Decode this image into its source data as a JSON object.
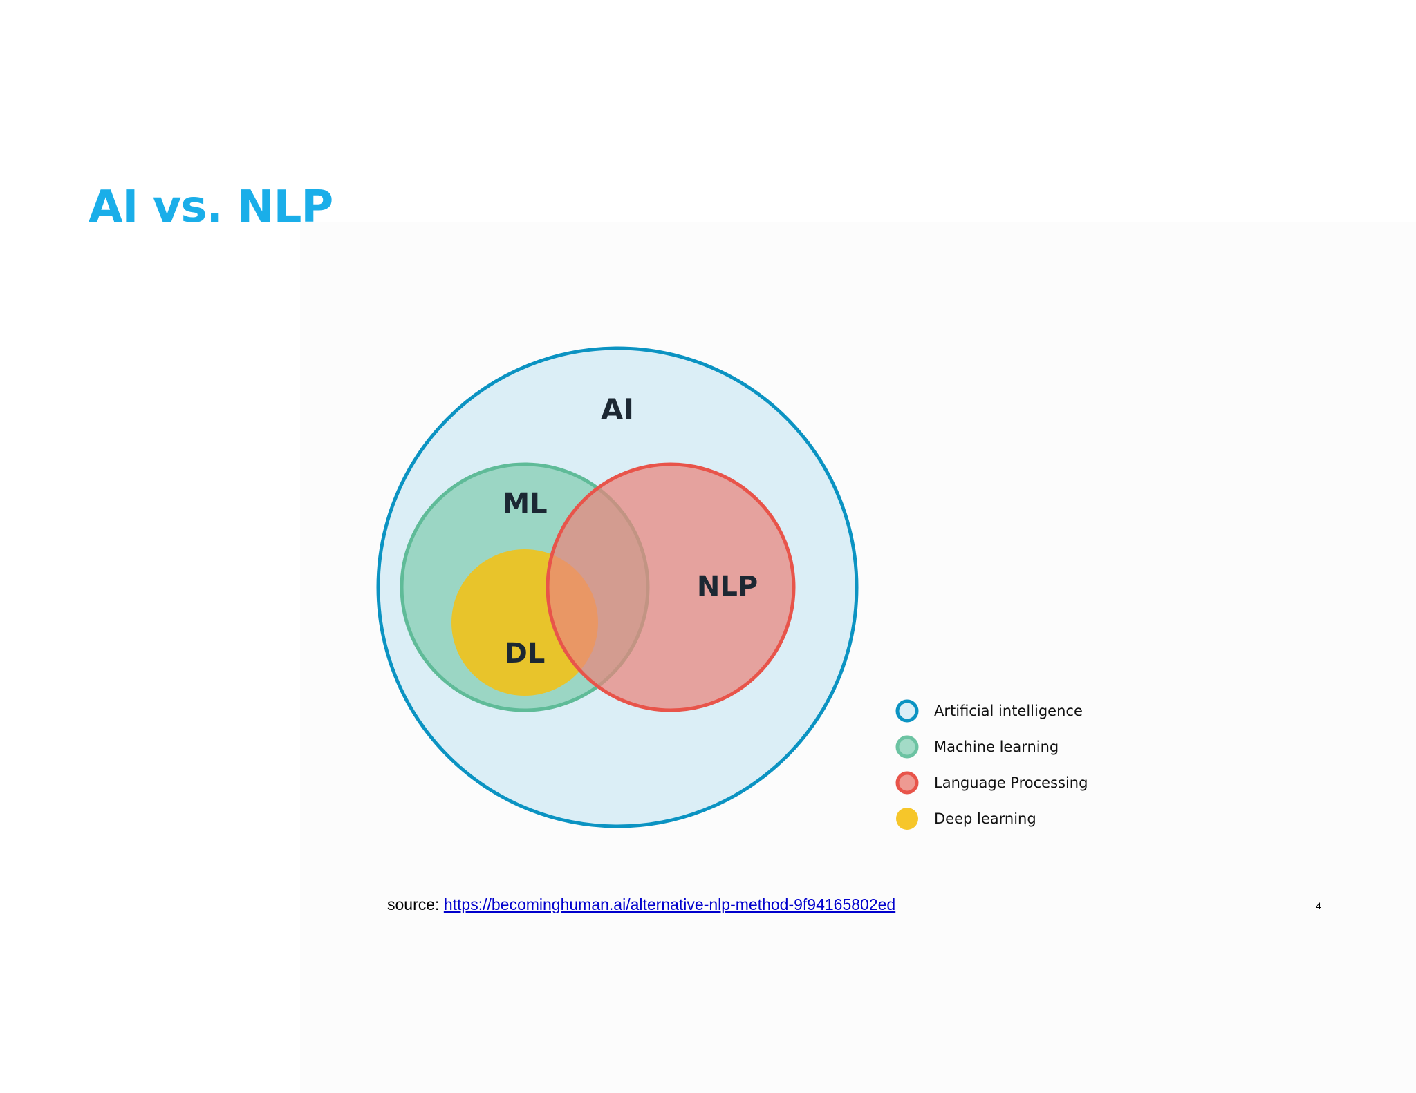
{
  "slide": {
    "title": "AI vs. NLP",
    "page_number": "4"
  },
  "diagram": {
    "circles": [
      {
        "id": "ai",
        "label": "AI",
        "fill": "#dbeef6",
        "stroke": "#0b93c2"
      },
      {
        "id": "ml",
        "label": "ML",
        "fill": "#86ceb3",
        "stroke": "#5fbb98"
      },
      {
        "id": "dl",
        "label": "DL",
        "fill": "#f1c21b",
        "stroke": "#f1c21b"
      },
      {
        "id": "nlp",
        "label": "NLP",
        "fill": "#e9857c",
        "stroke": "#e8544a"
      }
    ],
    "legend": [
      {
        "label": "Artificial intelligence",
        "fill": "#dbeef6",
        "stroke": "#0b93c2"
      },
      {
        "label": "Machine learning",
        "fill": "#a3dbc7",
        "stroke": "#6cc3a2"
      },
      {
        "label": "Language Processing",
        "fill": "#ee9a92",
        "stroke": "#e8544a"
      },
      {
        "label": "Deep learning",
        "fill": "#f6c62a",
        "stroke": "#f6c62a"
      }
    ]
  },
  "source": {
    "prefix": "source: ",
    "link_text": "https://becominghuman.ai/alternative-nlp-method-9f94165802ed"
  }
}
